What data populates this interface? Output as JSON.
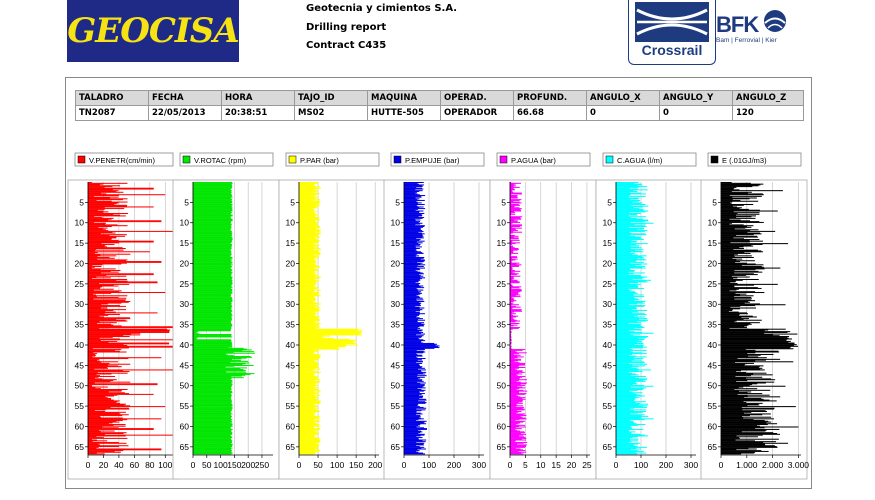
{
  "header": {
    "logo_text": "GEOCISA",
    "company_lines": [
      "Geotecnia y cimientos S.A.",
      "Drilling report",
      "Contract C435"
    ],
    "crossrail_text": "Crossrail",
    "bfk_text": "BFK",
    "bfk_sub": "Bam | Ferrovial | Kier"
  },
  "table": {
    "headers": [
      "TALADRO",
      "FECHA",
      "HORA",
      "TAJO_ID",
      "MAQUINA",
      "OPERAD.",
      "PROFUND.",
      "ANGULO_X",
      "ANGULO_Y",
      "ANGULO_Z"
    ],
    "row": [
      "TN2087",
      "22/05/2013",
      "20:38:51",
      "MS02",
      "HUTTE-505",
      "OPERADOR",
      "66.68",
      "0",
      "0",
      "120"
    ]
  },
  "chart_data": [
    {
      "type": "bar",
      "orientation": "horizontal",
      "legend": "V.PENETR(cm/min)",
      "color": "#ff0000",
      "xlim": [
        0,
        110
      ],
      "xticks": [
        0,
        20,
        40,
        60,
        80,
        100
      ],
      "xtick_labels": [
        "0",
        "20",
        "40",
        "60",
        "80",
        "100"
      ],
      "ylim": [
        0,
        67
      ],
      "yticks": [
        5,
        10,
        15,
        20,
        25,
        30,
        35,
        40,
        45,
        50,
        55,
        60,
        65
      ],
      "segments": [
        {
          "from": 0,
          "to": 36,
          "base": 30,
          "spread": 25,
          "spikes": [
            [
              1.5,
              85
            ],
            [
              3,
              100
            ],
            [
              6,
              85
            ],
            [
              9.5,
              95
            ],
            [
              12,
              110
            ],
            [
              14.5,
              85
            ],
            [
              17,
              80
            ],
            [
              19.5,
              95
            ],
            [
              22.5,
              85
            ],
            [
              24.5,
              90
            ],
            [
              27,
              100
            ],
            [
              32,
              90
            ],
            [
              35.5,
              110
            ]
          ]
        },
        {
          "from": 36,
          "to": 37,
          "base": 105,
          "spread": 4
        },
        {
          "from": 37,
          "to": 38,
          "base": 60,
          "spread": 15
        },
        {
          "from": 38,
          "to": 66.7,
          "base": 30,
          "spread": 25,
          "spikes": [
            [
              38.6,
              110
            ],
            [
              39.5,
              105
            ],
            [
              40.3,
              110
            ],
            [
              43,
              95
            ],
            [
              46,
              110
            ],
            [
              49.5,
              90
            ],
            [
              52,
              85
            ],
            [
              55,
              100
            ],
            [
              58,
              95
            ],
            [
              60.5,
              85
            ],
            [
              62,
              110
            ],
            [
              65.5,
              95
            ]
          ]
        }
      ]
    },
    {
      "type": "bar",
      "orientation": "horizontal",
      "legend": "V.ROTAC  (rpm)",
      "color": "#00e600",
      "xlim": [
        0,
        290
      ],
      "xticks": [
        0,
        50,
        100,
        150,
        200,
        250
      ],
      "xtick_labels": [
        "0",
        "50",
        "100",
        "150",
        "200",
        "250"
      ],
      "ylim": [
        0,
        67
      ],
      "yticks": [
        5,
        10,
        15,
        20,
        25,
        30,
        35,
        40,
        45,
        50,
        55,
        60,
        65
      ],
      "segments": [
        {
          "from": 0,
          "to": 36.5,
          "base": 140,
          "spread": 4
        },
        {
          "from": 36.5,
          "to": 37.3,
          "base": 20,
          "spread": 10
        },
        {
          "from": 37.3,
          "to": 38,
          "base": 140,
          "spread": 3
        },
        {
          "from": 38,
          "to": 38.6,
          "base": 20,
          "spread": 10
        },
        {
          "from": 38.6,
          "to": 40.5,
          "base": 140,
          "spread": 4
        },
        {
          "from": 40.5,
          "to": 48,
          "base": 170,
          "spread": 55
        },
        {
          "from": 48,
          "to": 66.7,
          "base": 140,
          "spread": 4
        }
      ]
    },
    {
      "type": "bar",
      "orientation": "horizontal",
      "legend": "P.PAR  (bar)",
      "color": "#ffff00",
      "xlim": [
        0,
        210
      ],
      "xticks": [
        0,
        50,
        100,
        150,
        200
      ],
      "xtick_labels": [
        "0",
        "50",
        "100",
        "150",
        "200"
      ],
      "ylim": [
        0,
        67
      ],
      "yticks": [
        5,
        10,
        15,
        20,
        25,
        30,
        35,
        40,
        45,
        50,
        55,
        60,
        65
      ],
      "segments": [
        {
          "from": 0,
          "to": 36,
          "base": 48,
          "spread": 10
        },
        {
          "from": 36,
          "to": 37.5,
          "base": 165,
          "spread": 10
        },
        {
          "from": 37.5,
          "to": 38.5,
          "base": 80,
          "spread": 20
        },
        {
          "from": 38.5,
          "to": 41,
          "base": 130,
          "spread": 30
        },
        {
          "from": 41,
          "to": 66.7,
          "base": 48,
          "spread": 10
        }
      ]
    },
    {
      "type": "bar",
      "orientation": "horizontal",
      "legend": "P.EMPUJE (bar)",
      "color": "#0000e6",
      "xlim": [
        0,
        320
      ],
      "xticks": [
        0,
        100,
        200,
        300
      ],
      "xtick_labels": [
        "0",
        "100",
        "200",
        "300"
      ],
      "ylim": [
        0,
        67
      ],
      "yticks": [
        5,
        10,
        15,
        20,
        25,
        30,
        35,
        40,
        45,
        50,
        55,
        60,
        65
      ],
      "segments": [
        {
          "from": 0,
          "to": 39.5,
          "base": 65,
          "spread": 20
        },
        {
          "from": 39.5,
          "to": 40.8,
          "base": 130,
          "spread": 15
        },
        {
          "from": 40.8,
          "to": 66.7,
          "base": 70,
          "spread": 22
        }
      ]
    },
    {
      "type": "bar",
      "orientation": "horizontal",
      "legend": "P.AGUA  (bar)",
      "color": "#ff00ff",
      "xlim": [
        0,
        26
      ],
      "xticks": [
        0,
        5,
        10,
        15,
        20,
        25
      ],
      "xtick_labels": [
        "0",
        "5",
        "10",
        "15",
        "20",
        "25"
      ],
      "ylim": [
        0,
        67
      ],
      "yticks": [
        5,
        10,
        15,
        20,
        25,
        30,
        35,
        40,
        45,
        50,
        55,
        60,
        65
      ],
      "segments": [
        {
          "from": 0,
          "to": 36,
          "base": 2,
          "spread": 2
        },
        {
          "from": 36,
          "to": 41,
          "base": 0.3,
          "spread": 0.3
        },
        {
          "from": 41,
          "to": 66.7,
          "base": 3.5,
          "spread": 2.2
        }
      ]
    },
    {
      "type": "bar",
      "orientation": "horizontal",
      "legend": "C.AGUA    (l/m)",
      "color": "#00ffff",
      "xlim": [
        0,
        320
      ],
      "xticks": [
        0,
        100,
        200,
        300
      ],
      "xtick_labels": [
        "0",
        "100",
        "200",
        "300"
      ],
      "ylim": [
        0,
        67
      ],
      "yticks": [
        5,
        10,
        15,
        20,
        25,
        30,
        35,
        40,
        45,
        50,
        55,
        60,
        65
      ],
      "segments": [
        {
          "from": 0,
          "to": 66.7,
          "base": 90,
          "spread": 40,
          "spikes": [
            [
              10,
              150
            ],
            [
              24,
              140
            ],
            [
              37,
              150
            ],
            [
              46,
              140
            ],
            [
              50,
              150
            ],
            [
              58,
              150
            ]
          ]
        }
      ]
    },
    {
      "type": "bar",
      "orientation": "horizontal",
      "legend": "E (.01GJ/m3)",
      "color": "#000000",
      "xlim": [
        0,
        3100
      ],
      "xticks": [
        0,
        1000,
        2000,
        3000
      ],
      "xtick_labels": [
        "0",
        "1.000",
        "2.000",
        "3.000"
      ],
      "ylim": [
        0,
        67
      ],
      "yticks": [
        5,
        10,
        15,
        20,
        25,
        30,
        35,
        40,
        45,
        50,
        55,
        60,
        65
      ],
      "segments": [
        {
          "from": 0,
          "to": 36,
          "base": 1000,
          "spread": 700,
          "spikes": [
            [
              2,
              2400
            ],
            [
              7,
              2200
            ],
            [
              12,
              2100
            ],
            [
              15,
              2600
            ],
            [
              21,
              2300
            ],
            [
              25,
              2200
            ],
            [
              30,
              2500
            ]
          ]
        },
        {
          "from": 36,
          "to": 38,
          "base": 2200,
          "spread": 800
        },
        {
          "from": 38,
          "to": 41,
          "base": 2800,
          "spread": 300
        },
        {
          "from": 41,
          "to": 66.7,
          "base": 1400,
          "spread": 900,
          "spikes": [
            [
              44,
              2800
            ],
            [
              50,
              2500
            ],
            [
              55,
              2900
            ],
            [
              60,
              3000
            ],
            [
              64,
              2600
            ]
          ]
        }
      ]
    }
  ]
}
